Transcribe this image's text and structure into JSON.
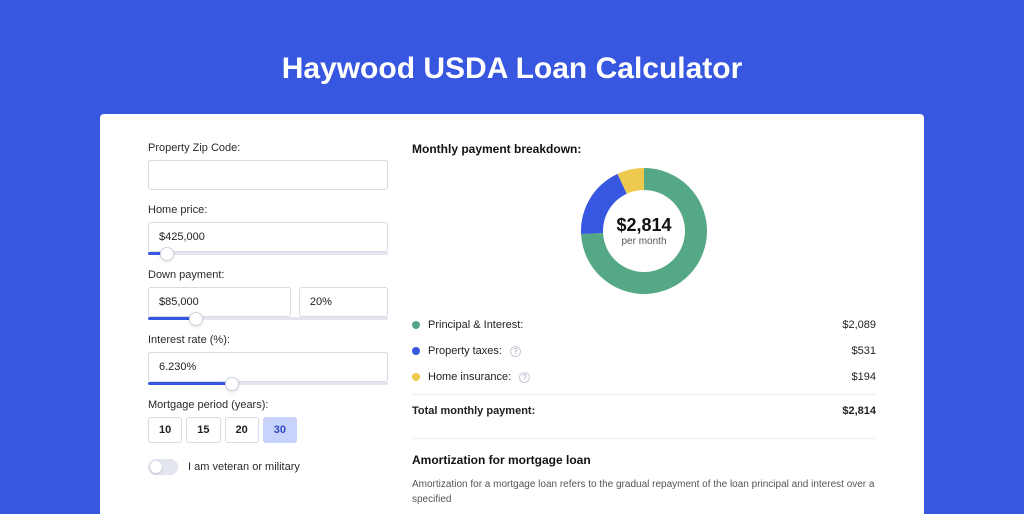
{
  "page": {
    "title": "Haywood USDA Loan Calculator",
    "background_color": "#3857e0",
    "card_background": "#ffffff"
  },
  "form": {
    "zip": {
      "label": "Property Zip Code:",
      "value": ""
    },
    "home_price": {
      "label": "Home price:",
      "value": "$425,000",
      "slider_percent": 8
    },
    "down_payment": {
      "label": "Down payment:",
      "value": "$85,000",
      "percent_value": "20%",
      "slider_percent": 20
    },
    "interest_rate": {
      "label": "Interest rate (%):",
      "value": "6.230%",
      "slider_percent": 35
    },
    "mortgage_period": {
      "label": "Mortgage period (years):",
      "options": [
        "10",
        "15",
        "20",
        "30"
      ],
      "selected": "30"
    },
    "veteran": {
      "label": "I am veteran or military",
      "on": false
    }
  },
  "breakdown": {
    "title": "Monthly payment breakdown:",
    "donut": {
      "center_value": "$2,814",
      "center_sub": "per month",
      "segments": [
        {
          "label": "Principal & Interest",
          "value": 2089,
          "display": "$2,089",
          "color": "#55a886",
          "has_info": false
        },
        {
          "label": "Property taxes",
          "value": 531,
          "display": "$531",
          "color": "#3857e0",
          "has_info": true
        },
        {
          "label": "Home insurance",
          "value": 194,
          "display": "$194",
          "color": "#edc94e",
          "has_info": true
        }
      ],
      "size": 126,
      "thickness": 22,
      "bg": "#ffffff"
    },
    "total": {
      "label": "Total monthly payment:",
      "display": "$2,814"
    }
  },
  "amortization": {
    "title": "Amortization for mortgage loan",
    "text": "Amortization for a mortgage loan refers to the gradual repayment of the loan principal and interest over a specified"
  }
}
